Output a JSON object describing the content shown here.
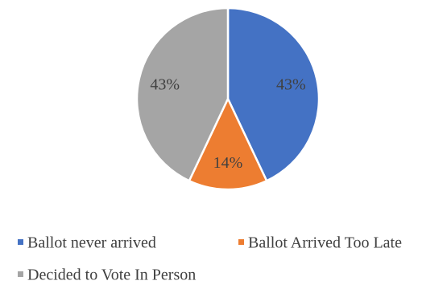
{
  "chart_data": {
    "type": "pie",
    "title": "",
    "slices": [
      {
        "label": "Ballot never arrived",
        "value": 43,
        "display": "43%",
        "color": "#4472C4"
      },
      {
        "label": "Ballot Arrived Too Late",
        "value": 14,
        "display": "14%",
        "color": "#ED7D31"
      },
      {
        "label": "Decided to Vote In Person",
        "value": 43,
        "display": "43%",
        "color": "#A5A5A5"
      }
    ],
    "start_angle_deg": 0,
    "direction": "clockwise",
    "legend_position": "bottom",
    "data_label_color": "#404040"
  }
}
